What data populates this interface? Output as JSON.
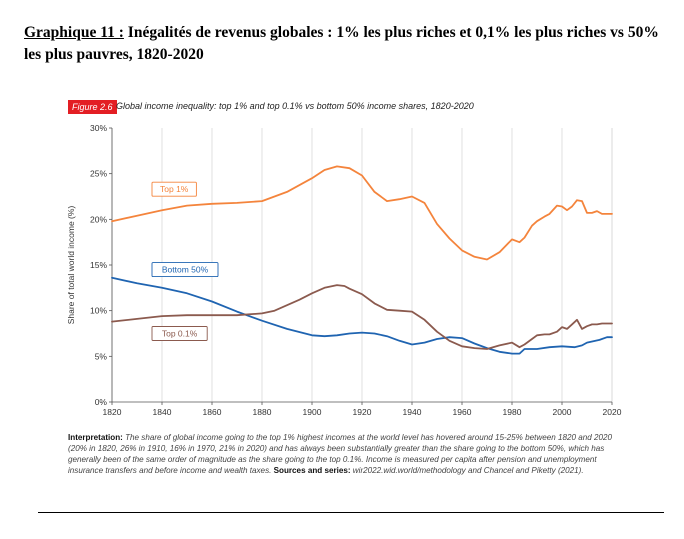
{
  "heading": {
    "lead": "Graphique 11 :",
    "text": " Inégalités de revenus globales : 1% les plus riches et 0,1% les plus riches vs 50% les plus pauvres, 1820-2020"
  },
  "figure": {
    "badge": "Figure 2.6",
    "title": "Global income inequality: top 1% and top 0.1% vs bottom 50% income shares, 1820-2020"
  },
  "note": {
    "interp_label": "Interpretation:",
    "interp_text": " The share of global income going to the top 1% highest incomes at the world level has hovered around 15-25% between 1820 and 2020 (20% in 1820, 26% in 1910, 16% in 1970, 21% in 2020) and has always been substantially greater than the share going to the bottom 50%, which has generally been of the same order of magnitude as the share going to the top 0.1%. Income is measured per capita after pension and unemployment insurance transfers and before income and wealth taxes.",
    "sources_label": " Sources and series:",
    "sources_text": " wir2022.wid.world/methodology and Chancel and Piketty (2021)."
  },
  "chart_data": {
    "type": "line",
    "title": "Global income inequality: top 1% and top 0.1% vs bottom 50% income shares, 1820-2020",
    "xlabel": "",
    "ylabel": "Share of total world income (%)",
    "xlim": [
      1820,
      2020
    ],
    "ylim": [
      0,
      30
    ],
    "xticks": [
      1820,
      1840,
      1860,
      1880,
      1900,
      1920,
      1940,
      1960,
      1980,
      2000,
      2020
    ],
    "yticks": [
      0,
      5,
      10,
      15,
      20,
      25,
      30
    ],
    "ytick_labels": [
      "0%",
      "5%",
      "10%",
      "15%",
      "20%",
      "25%",
      "30%"
    ],
    "grid": "vertical",
    "series": [
      {
        "name": "Top 1%",
        "color": "#f4843c",
        "x": [
          1820,
          1830,
          1840,
          1850,
          1860,
          1870,
          1880,
          1890,
          1900,
          1905,
          1910,
          1915,
          1920,
          1925,
          1930,
          1935,
          1940,
          1945,
          1950,
          1955,
          1960,
          1965,
          1970,
          1975,
          1980,
          1983,
          1985,
          1988,
          1990,
          1993,
          1995,
          1998,
          2000,
          2002,
          2004,
          2006,
          2008,
          2010,
          2012,
          2014,
          2016,
          2018,
          2020
        ],
        "values": [
          19.8,
          20.4,
          21.0,
          21.5,
          21.7,
          21.8,
          22.0,
          23.0,
          24.5,
          25.4,
          25.8,
          25.6,
          24.8,
          23.0,
          22.0,
          22.2,
          22.5,
          21.8,
          19.5,
          17.9,
          16.6,
          15.9,
          15.6,
          16.4,
          17.8,
          17.5,
          18.0,
          19.3,
          19.8,
          20.3,
          20.6,
          21.5,
          21.4,
          21.0,
          21.4,
          22.1,
          22.0,
          20.7,
          20.7,
          20.9,
          20.6,
          20.6,
          20.6
        ]
      },
      {
        "name": "Bottom 50%",
        "color": "#1f64b1",
        "x": [
          1820,
          1830,
          1840,
          1850,
          1860,
          1870,
          1880,
          1890,
          1900,
          1905,
          1910,
          1915,
          1920,
          1925,
          1930,
          1935,
          1940,
          1945,
          1950,
          1955,
          1960,
          1965,
          1970,
          1975,
          1980,
          1983,
          1985,
          1990,
          1995,
          2000,
          2005,
          2008,
          2010,
          2015,
          2018,
          2020
        ],
        "values": [
          13.6,
          13.0,
          12.5,
          11.9,
          11.0,
          9.9,
          8.9,
          8.0,
          7.3,
          7.2,
          7.3,
          7.5,
          7.6,
          7.5,
          7.2,
          6.7,
          6.3,
          6.5,
          6.9,
          7.1,
          7.0,
          6.4,
          5.9,
          5.5,
          5.3,
          5.3,
          5.8,
          5.8,
          6.0,
          6.1,
          6.0,
          6.2,
          6.5,
          6.8,
          7.1,
          7.1
        ]
      },
      {
        "name": "Top 0.1%",
        "color": "#8b5a4e",
        "x": [
          1820,
          1830,
          1840,
          1850,
          1860,
          1870,
          1880,
          1885,
          1890,
          1895,
          1900,
          1905,
          1910,
          1913,
          1915,
          1920,
          1925,
          1930,
          1935,
          1940,
          1945,
          1950,
          1955,
          1960,
          1965,
          1970,
          1975,
          1980,
          1983,
          1985,
          1988,
          1990,
          1993,
          1995,
          1998,
          2000,
          2002,
          2004,
          2006,
          2008,
          2010,
          2012,
          2014,
          2016,
          2018,
          2020
        ],
        "values": [
          8.8,
          9.1,
          9.4,
          9.5,
          9.5,
          9.5,
          9.7,
          10.0,
          10.6,
          11.2,
          11.9,
          12.5,
          12.8,
          12.7,
          12.4,
          11.8,
          10.8,
          10.1,
          10.0,
          9.9,
          9.0,
          7.7,
          6.7,
          6.1,
          5.9,
          5.8,
          6.2,
          6.5,
          6.0,
          6.3,
          6.9,
          7.3,
          7.4,
          7.4,
          7.7,
          8.2,
          8.0,
          8.5,
          9.0,
          8.0,
          8.3,
          8.5,
          8.5,
          8.6,
          8.6,
          8.6
        ]
      }
    ],
    "annotations": [
      {
        "text": "Top 1%",
        "x": 1836,
        "y": 23.3
      },
      {
        "text": "Bottom 50%",
        "x": 1836,
        "y": 14.5
      },
      {
        "text": "Top 0.1%",
        "x": 1836,
        "y": 7.5
      }
    ]
  }
}
